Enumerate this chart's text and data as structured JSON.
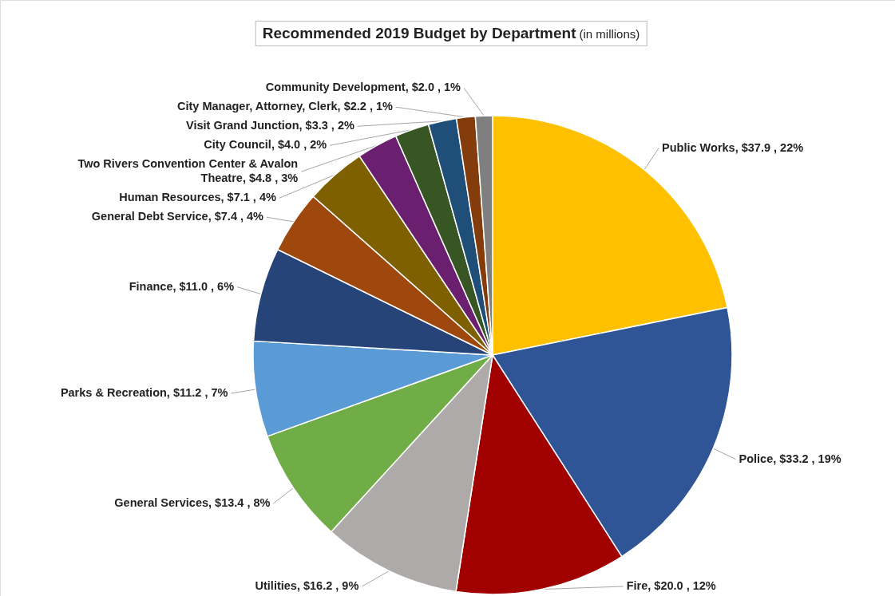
{
  "chart_data": {
    "type": "pie",
    "title": "Recommended 2019 Budget by Department",
    "subtitle": "(in millions)",
    "categories": [
      "Public Works",
      "Police",
      "Fire",
      "Utilities",
      "General Services",
      "Parks & Recreation",
      "Finance",
      "General Debt Service",
      "Human Resources",
      "Two Rivers Convention Center & Avalon Theatre",
      "City Council",
      "Visit Grand Junction",
      "City Manager, Attorney, Clerk",
      "Community Development"
    ],
    "values": [
      37.9,
      33.2,
      20.0,
      16.2,
      13.4,
      11.2,
      11.0,
      7.4,
      7.1,
      4.8,
      4.0,
      3.3,
      2.2,
      2.0
    ],
    "value_labels": [
      "$37.9 , 22%",
      "$33.2 , 19%",
      "$20.0 , 12%",
      "$16.2 , 9%",
      "$13.4 , 8%",
      "$11.2 , 7%",
      "$11.0 , 6%",
      "$7.4 , 4%",
      "$7.1 , 4%",
      "$4.8 , 3%",
      "$4.0 , 2%",
      "$3.3 , 2%",
      "$2.2 , 1%",
      "$2.0 , 1%"
    ],
    "colors": [
      "#ffc000",
      "#2f5597",
      "#a00000",
      "#aeaaaa",
      "#70ad47",
      "#5b9bd5",
      "#264478",
      "#9e480e",
      "#7f6000",
      "#6a1f6f",
      "#375623",
      "#1f4e79",
      "#843c0c",
      "#7f7f7f"
    ]
  }
}
